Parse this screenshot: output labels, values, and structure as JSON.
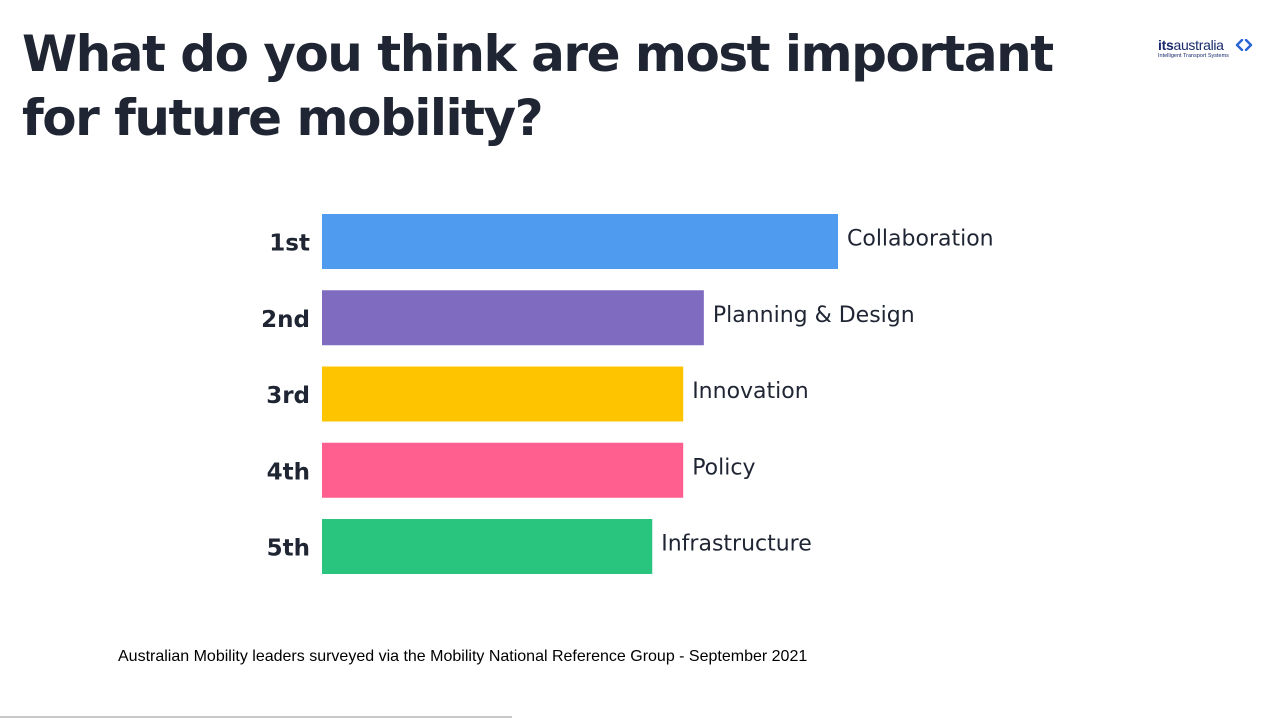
{
  "title": "What do you think are most important for future mobility?",
  "logo": {
    "word_bold": "its",
    "word_regular": "australia",
    "tagline": "Intelligent Transport Systems",
    "icon": "chevrons-icon",
    "color": "#1a2b6d"
  },
  "chart_data": {
    "type": "bar",
    "orientation": "horizontal",
    "categories": [
      "1st",
      "2nd",
      "3rd",
      "4th",
      "5th"
    ],
    "labels": [
      "Collaboration",
      "Planning & Design",
      "Innovation",
      "Policy",
      "Infrastructure"
    ],
    "values": [
      100,
      74,
      70,
      70,
      64
    ],
    "value_units": "relative bar length (percent of longest bar)",
    "colors": [
      "#4f9bf0",
      "#7f6bbf",
      "#ffc400",
      "#ff5f8f",
      "#29c47e"
    ],
    "title": "What do you think are most important for future mobility?",
    "xlabel": "",
    "ylabel": "",
    "xlim": [
      0,
      100
    ],
    "grid": false,
    "legend": "none"
  },
  "footnote": "Australian Mobility leaders surveyed via the Mobility National Reference Group - September 2021"
}
